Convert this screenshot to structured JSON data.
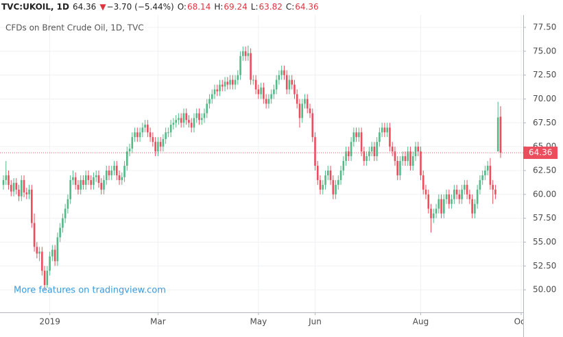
{
  "header": {
    "symbol": "TVC:UKOIL, 1D",
    "arrow": "▼",
    "change": "−3.70 (−5.44%)",
    "o_label": "O:",
    "h_label": "H:",
    "l_label": "L:",
    "c_label": "C:"
  },
  "promo": "More features on tradingview.com",
  "chart_data": {
    "type": "candlestick",
    "title": "CFDs on Brent Crude Oil, 1D, TVC",
    "up_color": "#53b987",
    "down_color": "#eb4d5c",
    "grid": true,
    "ylim": [
      47.64,
      78.79
    ],
    "yticks": [
      {
        "value": 50,
        "label": "50.00"
      },
      {
        "value": 52.5,
        "label": "52.50"
      },
      {
        "value": 55,
        "label": "55.00"
      },
      {
        "value": 57.5,
        "label": "57.50"
      },
      {
        "value": 60,
        "label": "60.00"
      },
      {
        "value": 62.5,
        "label": "62.50"
      },
      {
        "value": 65,
        "label": "65.00"
      },
      {
        "value": 67.5,
        "label": "67.50"
      },
      {
        "value": 70,
        "label": "70.00"
      },
      {
        "value": 72.5,
        "label": "72.50"
      },
      {
        "value": 75,
        "label": "75.00"
      },
      {
        "value": 77.5,
        "label": "77.50"
      }
    ],
    "xlim": [
      -1.33,
      201.8
    ],
    "xticks": [
      {
        "value": 18,
        "label": "2019"
      },
      {
        "value": 60,
        "label": "Mar"
      },
      {
        "value": 99,
        "label": "May"
      },
      {
        "value": 121,
        "label": "Jun"
      },
      {
        "value": 162,
        "label": "Aug"
      },
      {
        "value": 201,
        "label": "Oct"
      }
    ],
    "open": [
      61.0,
      61.5,
      62.0,
      61.0,
      60.3,
      61.2,
      60.5,
      59.8,
      61.5,
      60.2,
      60.0,
      60.5,
      57.0,
      54.5,
      53.8,
      54.0,
      52.0,
      50.5,
      52.0,
      53.5,
      54.2,
      53.0,
      55.5,
      56.5,
      57.5,
      58.5,
      59.5,
      61.5,
      61.8,
      61.0,
      60.5,
      61.5,
      61.0,
      62.0,
      61.5,
      61.0,
      61.8,
      62.0,
      61.2,
      60.5,
      61.5,
      62.5,
      62.0,
      62.5,
      63.0,
      62.0,
      61.5,
      61.8,
      63.0,
      64.5,
      64.8,
      66.0,
      66.5,
      66.0,
      66.5,
      67.0,
      67.3,
      66.5,
      66.0,
      65.5,
      64.5,
      65.5,
      65.0,
      65.8,
      66.5,
      66.5,
      67.3,
      67.5,
      67.8,
      68.0,
      67.5,
      68.5,
      67.8,
      67.5,
      67.0,
      68.0,
      68.5,
      67.8,
      68.0,
      68.5,
      69.5,
      70.0,
      70.5,
      71.0,
      70.8,
      71.5,
      71.3,
      71.8,
      71.5,
      72.0,
      71.5,
      72.0,
      72.5,
      74.5,
      75.0,
      74.5,
      74.8,
      72.0,
      72.0,
      71.0,
      70.5,
      71.2,
      70.0,
      69.5,
      70.0,
      70.5,
      71.0,
      72.0,
      72.5,
      73.0,
      72.5,
      71.0,
      72.0,
      71.5,
      70.5,
      69.5,
      68.0,
      69.5,
      70.0,
      69.0,
      68.5,
      66.0,
      63.0,
      61.5,
      60.5,
      61.0,
      62.0,
      62.5,
      61.5,
      60.0,
      61.0,
      61.5,
      62.5,
      63.5,
      64.5,
      64.0,
      65.5,
      66.5,
      66.0,
      66.5,
      64.5,
      63.5,
      64.0,
      64.5,
      65.0,
      64.0,
      65.5,
      66.5,
      67.0,
      66.5,
      67.0,
      65.0,
      64.5,
      63.5,
      62.0,
      63.5,
      64.0,
      63.5,
      64.5,
      63.0,
      64.0,
      65.0,
      64.5,
      62.0,
      60.5,
      60.0,
      58.5,
      57.5,
      58.0,
      58.5,
      59.5,
      58.0,
      59.5,
      60.0,
      59.0,
      59.5,
      60.5,
      60.0,
      59.5,
      60.5,
      61.0,
      60.0,
      59.5,
      58.0,
      59.0,
      60.5,
      61.5,
      62.0,
      62.5,
      63.0,
      61.0,
      60.5,
      64.5,
      68.14
    ],
    "high": [
      62.0,
      63.5,
      62.5,
      61.5,
      61.7,
      61.7,
      61.0,
      62.0,
      62.0,
      60.7,
      61.0,
      61.0,
      58.0,
      55.0,
      54.5,
      54.5,
      52.5,
      52.5,
      54.0,
      54.7,
      54.7,
      56.0,
      57.0,
      58.0,
      59.0,
      60.0,
      62.0,
      62.5,
      62.3,
      61.5,
      62.0,
      62.0,
      62.5,
      62.5,
      62.0,
      62.3,
      62.5,
      62.5,
      61.7,
      62.0,
      63.0,
      63.0,
      63.0,
      63.5,
      63.5,
      62.5,
      62.3,
      63.5,
      65.0,
      65.3,
      66.5,
      67.0,
      67.0,
      67.0,
      67.5,
      67.8,
      67.8,
      67.0,
      66.5,
      66.0,
      66.0,
      66.0,
      66.3,
      67.0,
      67.0,
      67.8,
      68.0,
      68.3,
      68.5,
      68.5,
      69.0,
      69.0,
      68.3,
      68.0,
      68.5,
      69.0,
      69.0,
      68.5,
      69.0,
      70.0,
      70.5,
      71.0,
      71.5,
      71.5,
      72.0,
      72.0,
      72.3,
      72.3,
      72.5,
      72.5,
      72.5,
      73.0,
      75.0,
      75.5,
      75.5,
      75.6,
      75.3,
      72.5,
      72.5,
      71.5,
      71.7,
      71.7,
      70.5,
      70.5,
      71.0,
      71.5,
      72.5,
      73.0,
      73.5,
      73.5,
      73.0,
      72.5,
      72.5,
      72.0,
      71.0,
      70.0,
      70.0,
      70.5,
      70.5,
      69.5,
      69.0,
      66.5,
      63.5,
      62.0,
      61.5,
      62.5,
      63.0,
      63.0,
      62.0,
      61.5,
      62.0,
      63.0,
      64.0,
      65.0,
      65.0,
      66.0,
      67.0,
      67.0,
      67.0,
      67.0,
      65.0,
      64.5,
      65.0,
      65.5,
      65.5,
      66.0,
      67.0,
      67.5,
      67.5,
      67.5,
      67.5,
      65.5,
      65.0,
      64.0,
      64.0,
      64.5,
      64.5,
      65.0,
      65.0,
      64.5,
      65.5,
      65.5,
      65.0,
      62.5,
      61.0,
      60.5,
      59.0,
      58.5,
      59.0,
      60.0,
      60.0,
      60.0,
      60.5,
      60.5,
      60.0,
      61.0,
      61.0,
      60.5,
      61.0,
      61.5,
      61.5,
      60.5,
      60.0,
      59.5,
      61.0,
      62.0,
      62.5,
      63.0,
      63.5,
      63.8,
      61.5,
      61.0,
      69.7,
      69.24
    ],
    "low": [
      60.5,
      61.0,
      60.5,
      59.8,
      59.8,
      60.0,
      59.3,
      59.3,
      59.7,
      59.5,
      59.5,
      56.5,
      54.0,
      53.3,
      53.0,
      51.5,
      50.0,
      50.2,
      51.5,
      53.0,
      52.5,
      52.5,
      55.0,
      56.0,
      57.0,
      58.0,
      59.0,
      61.0,
      60.5,
      60.0,
      60.0,
      60.5,
      60.5,
      61.0,
      60.5,
      60.5,
      61.3,
      60.7,
      60.0,
      60.0,
      61.0,
      61.5,
      61.5,
      62.0,
      61.5,
      61.0,
      61.0,
      61.3,
      62.5,
      64.0,
      64.3,
      65.5,
      65.5,
      65.5,
      66.0,
      66.5,
      66.0,
      65.5,
      65.0,
      64.0,
      64.0,
      64.5,
      64.5,
      65.3,
      66.0,
      66.0,
      66.8,
      67.0,
      67.3,
      67.0,
      67.0,
      67.3,
      67.0,
      66.5,
      66.5,
      67.5,
      67.3,
      67.3,
      67.5,
      68.0,
      69.0,
      69.5,
      70.0,
      70.3,
      70.3,
      70.8,
      70.8,
      71.0,
      71.0,
      71.0,
      71.0,
      71.5,
      72.0,
      74.0,
      74.0,
      74.0,
      71.5,
      71.5,
      70.5,
      70.0,
      70.0,
      69.5,
      69.0,
      69.0,
      69.5,
      70.0,
      70.5,
      71.5,
      72.0,
      72.0,
      70.5,
      70.5,
      71.0,
      70.0,
      69.0,
      67.0,
      67.5,
      69.0,
      68.5,
      68.0,
      65.5,
      62.5,
      61.0,
      60.0,
      60.0,
      60.5,
      61.5,
      61.0,
      59.5,
      59.5,
      60.5,
      61.0,
      62.0,
      63.0,
      63.5,
      63.5,
      65.0,
      65.5,
      65.5,
      64.0,
      63.0,
      63.0,
      63.5,
      64.0,
      63.5,
      63.5,
      65.0,
      66.0,
      66.0,
      66.0,
      64.5,
      64.0,
      63.0,
      61.5,
      61.5,
      63.0,
      63.0,
      63.0,
      62.5,
      62.5,
      63.5,
      64.0,
      61.5,
      60.0,
      59.5,
      58.0,
      56.0,
      57.0,
      57.5,
      58.0,
      57.5,
      57.5,
      59.0,
      58.5,
      58.5,
      59.0,
      59.5,
      59.0,
      59.0,
      60.0,
      59.5,
      59.0,
      57.5,
      57.5,
      58.5,
      60.0,
      61.0,
      61.5,
      62.0,
      60.5,
      59.0,
      59.5,
      64.5,
      63.82
    ],
    "close": [
      61.5,
      62.0,
      61.0,
      60.3,
      61.2,
      60.5,
      59.8,
      61.5,
      60.2,
      60.0,
      60.5,
      57.0,
      54.5,
      53.8,
      54.0,
      52.0,
      50.5,
      52.0,
      53.5,
      54.2,
      53.0,
      55.5,
      56.5,
      57.5,
      58.5,
      59.5,
      61.5,
      61.8,
      61.0,
      60.5,
      61.5,
      61.0,
      62.0,
      61.5,
      61.0,
      61.8,
      62.0,
      61.2,
      60.5,
      61.5,
      62.5,
      62.0,
      62.5,
      63.0,
      62.0,
      61.5,
      61.8,
      63.0,
      64.5,
      64.8,
      66.0,
      66.5,
      66.0,
      66.5,
      67.0,
      67.3,
      66.5,
      66.0,
      65.5,
      64.5,
      65.5,
      65.0,
      65.8,
      66.5,
      66.5,
      67.3,
      67.5,
      67.8,
      68.0,
      67.5,
      68.5,
      67.8,
      67.5,
      67.0,
      68.0,
      68.5,
      67.8,
      68.0,
      68.5,
      69.5,
      70.0,
      70.5,
      71.0,
      70.8,
      71.5,
      71.3,
      71.8,
      71.5,
      72.0,
      71.5,
      72.0,
      72.5,
      74.5,
      75.0,
      74.5,
      74.8,
      72.0,
      72.0,
      71.0,
      70.5,
      71.2,
      70.0,
      69.5,
      70.0,
      70.5,
      71.0,
      72.0,
      72.5,
      73.0,
      72.5,
      71.0,
      72.0,
      71.5,
      70.5,
      69.5,
      68.0,
      69.5,
      70.0,
      69.0,
      68.5,
      66.0,
      63.0,
      61.5,
      60.5,
      61.0,
      62.0,
      62.5,
      61.5,
      60.0,
      61.0,
      61.5,
      62.5,
      63.5,
      64.5,
      64.0,
      65.5,
      66.5,
      66.0,
      66.5,
      64.5,
      63.5,
      64.0,
      64.5,
      65.0,
      64.0,
      65.5,
      66.5,
      67.0,
      66.5,
      67.0,
      65.0,
      64.5,
      63.5,
      62.0,
      63.5,
      64.0,
      63.5,
      64.5,
      63.0,
      64.0,
      65.0,
      64.5,
      62.0,
      60.5,
      60.0,
      58.5,
      57.5,
      58.0,
      58.5,
      59.5,
      58.0,
      59.5,
      60.0,
      59.0,
      59.5,
      60.5,
      60.0,
      59.5,
      60.5,
      61.0,
      60.0,
      59.5,
      58.0,
      59.0,
      60.5,
      61.5,
      62.0,
      62.5,
      63.0,
      61.0,
      60.5,
      60.0,
      68.06,
      64.36
    ]
  }
}
